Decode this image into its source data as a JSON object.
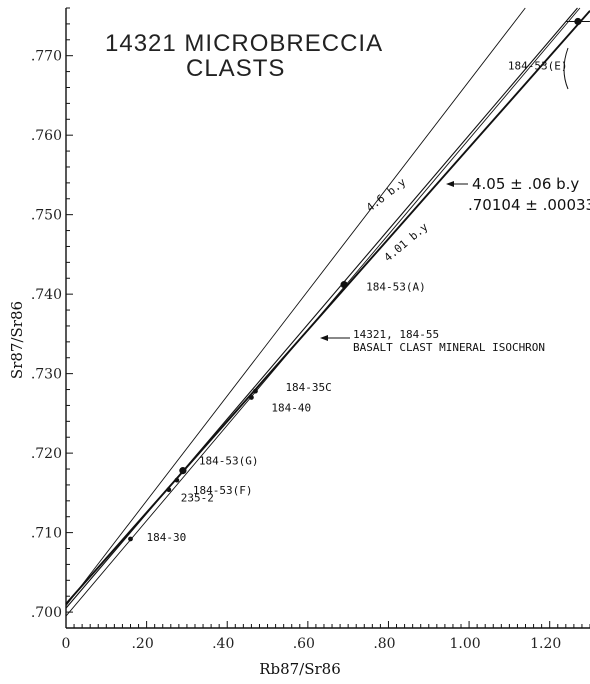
{
  "chart_data": {
    "type": "scatter",
    "title": "14321 MICROBRECCIA",
    "subtitle": "CLASTS",
    "xlabel": "Rb87/Sr86",
    "ylabel": "Sr87/Sr86",
    "xlim": [
      0,
      1.3
    ],
    "ylim": [
      0.698,
      0.776
    ],
    "x_ticks": [
      {
        "v": 0,
        "label": "0"
      },
      {
        "v": 0.2,
        "label": ".20"
      },
      {
        "v": 0.4,
        "label": ".40"
      },
      {
        "v": 0.6,
        "label": ".60"
      },
      {
        "v": 0.8,
        "label": ".80"
      },
      {
        "v": 1.0,
        "label": "1.00"
      },
      {
        "v": 1.2,
        "label": "1.20"
      }
    ],
    "y_ticks": [
      {
        "v": 0.7,
        "label": ".700"
      },
      {
        "v": 0.71,
        "label": ".710"
      },
      {
        "v": 0.72,
        "label": ".720"
      },
      {
        "v": 0.73,
        "label": ".730"
      },
      {
        "v": 0.74,
        "label": ".740"
      },
      {
        "v": 0.75,
        "label": ".750"
      },
      {
        "v": 0.76,
        "label": ".760"
      },
      {
        "v": 0.77,
        "label": ".770"
      }
    ],
    "grid": false,
    "points": [
      {
        "x": 0.16,
        "y": 0.7092,
        "label": "184-30"
      },
      {
        "x": 0.255,
        "y": 0.7154,
        "label": "235-2"
      },
      {
        "x": 0.275,
        "y": 0.7166,
        "label": "184-53(F)"
      },
      {
        "x": 0.29,
        "y": 0.7178,
        "label": "184-53(G)"
      },
      {
        "x": 0.46,
        "y": 0.727,
        "label": "184-40"
      },
      {
        "x": 0.47,
        "y": 0.7278,
        "label": "184-35C"
      },
      {
        "x": 0.69,
        "y": 0.7412,
        "label": "184-53(A)"
      },
      {
        "x": 1.27,
        "y": 0.7743,
        "label": "184-53(E)"
      }
    ],
    "lines": [
      {
        "label": "4.05 ± .06 b.y",
        "intercept": 0.70104,
        "slope": 0.0574
      },
      {
        "label": "4.6 b.y",
        "intercept": 0.7008,
        "slope": 0.066
      },
      {
        "label": "4.01 b.y",
        "intercept": 0.6995,
        "slope": 0.06
      },
      {
        "label": "",
        "intercept": 0.7005,
        "slope": 0.0595
      }
    ],
    "annotations": {
      "main_age": "4.05 ± .06 b.y",
      "initial_ratio": ".70104 ± .00033",
      "line_46": "4.6 b.y",
      "line_401": "4.01 b.y",
      "isochron_ref_1": "14321, 184-55",
      "isochron_ref_2": "BASALT CLAST MINERAL ISOCHRON"
    }
  }
}
